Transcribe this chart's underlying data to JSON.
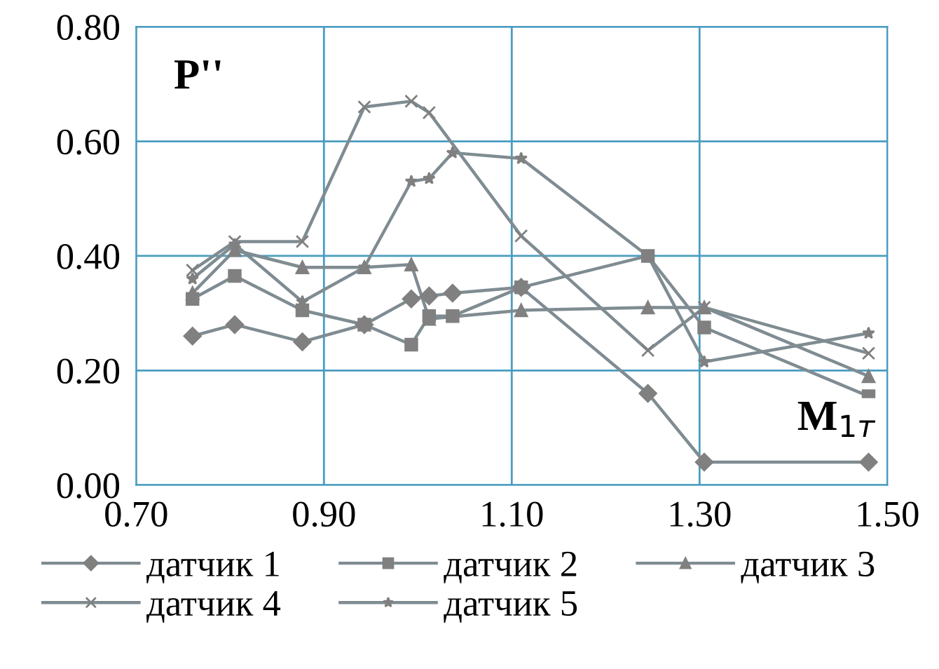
{
  "chart_data": {
    "type": "line",
    "xlabel": "M$_{1т}$",
    "ylabel": "P''",
    "xlim": [
      0.7,
      1.5
    ],
    "xticks": [
      {
        "value": 0.7,
        "label": "0.70"
      },
      {
        "value": 0.9,
        "label": "0.90"
      },
      {
        "value": 1.1,
        "label": "1.10"
      },
      {
        "value": 1.3,
        "label": "1.30"
      },
      {
        "value": 1.5,
        "label": "1.50"
      }
    ],
    "ylim": [
      0,
      0.8
    ],
    "yticks": [
      {
        "value": 0,
        "label": "0.00"
      },
      {
        "value": 0.2,
        "label": "0.20"
      },
      {
        "value": 0.4,
        "label": "0.40"
      },
      {
        "value": 0.6,
        "label": "0.60"
      },
      {
        "value": 0.8,
        "label": "0.80"
      }
    ],
    "grid": true,
    "legend": "bottom",
    "line_style": "solid",
    "series": [
      {
        "name": "датчик 1",
        "color": "#7f8c92",
        "marker": "diamond",
        "x": [
          0.76,
          0.805,
          0.877,
          0.943,
          0.993,
          1.012,
          1.037,
          1.11,
          1.245,
          1.305,
          1.48
        ],
        "values": [
          0.26,
          0.28,
          0.25,
          0.28,
          0.325,
          0.33,
          0.335,
          0.345,
          0.16,
          0.04,
          0.04
        ]
      },
      {
        "name": "датчик 2",
        "color": "#7f8c92",
        "marker": "square",
        "x": [
          0.76,
          0.805,
          0.877,
          0.943,
          0.993,
          1.012,
          1.037,
          1.11,
          1.245,
          1.305,
          1.48
        ],
        "values": [
          0.325,
          0.365,
          0.305,
          0.28,
          0.245,
          0.295,
          0.295,
          0.345,
          0.4,
          0.275,
          0.155
        ]
      },
      {
        "name": "датчик 3",
        "color": "#7f8c92",
        "marker": "triangle",
        "x": [
          0.76,
          0.805,
          0.877,
          0.943,
          0.993,
          1.012,
          1.11,
          1.245,
          1.305,
          1.48
        ],
        "values": [
          0.335,
          0.41,
          0.38,
          0.38,
          0.385,
          0.29,
          0.305,
          0.31,
          0.31,
          0.19
        ]
      },
      {
        "name": "датчик 4",
        "color": "#7f8c92",
        "marker": "cross",
        "x": [
          0.76,
          0.805,
          0.877,
          0.943,
          0.993,
          1.012,
          1.11,
          1.245,
          1.305,
          1.48
        ],
        "values": [
          0.375,
          0.425,
          0.425,
          0.66,
          0.67,
          0.65,
          0.435,
          0.235,
          0.31,
          0.23
        ]
      },
      {
        "name": "датчик 5",
        "color": "#7f8c92",
        "marker": "star",
        "x": [
          0.76,
          0.805,
          0.877,
          0.943,
          0.993,
          1.012,
          1.037,
          1.11,
          1.245,
          1.305,
          1.48
        ],
        "values": [
          0.36,
          0.42,
          0.32,
          0.38,
          0.53,
          0.535,
          0.58,
          0.57,
          0.4,
          0.215,
          0.265
        ]
      }
    ]
  }
}
